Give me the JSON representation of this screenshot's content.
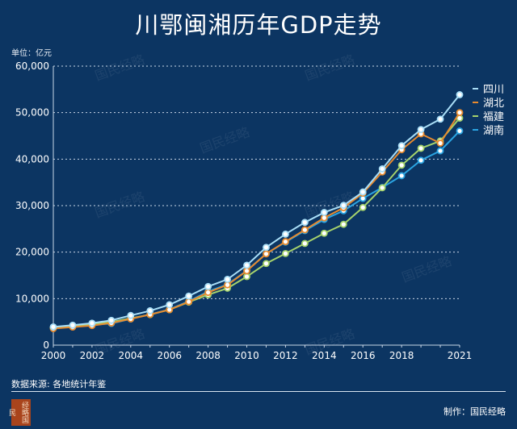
{
  "title": "川鄂闽湘历年GDP走势",
  "unit": "单位：亿元",
  "source": "数据来源: 各地统计年鉴",
  "credit": "制作：国民经略",
  "watermark": "国民经略",
  "logo_text": "国民经略",
  "background": "#0c3562",
  "chart_data": {
    "type": "line",
    "title": "川鄂闽湘历年GDP走势",
    "ylabel": "单位：亿元",
    "xlabel": "",
    "x": [
      2000,
      2001,
      2002,
      2003,
      2004,
      2005,
      2006,
      2007,
      2008,
      2009,
      2010,
      2011,
      2012,
      2013,
      2014,
      2015,
      2016,
      2017,
      2018,
      2019,
      2020,
      2021
    ],
    "xticks": [
      "2000",
      "2002",
      "2004",
      "2006",
      "2008",
      "2010",
      "2012",
      "2014",
      "2016",
      "2018",
      "2021"
    ],
    "ylim": [
      0,
      60000
    ],
    "yticks": [
      "0",
      "10,000",
      "20,000",
      "30,000",
      "40,000",
      "50,000",
      "60,000"
    ],
    "grid": "horizontal dotted",
    "legend": "right",
    "series": [
      {
        "name": "四川",
        "color": "#a9def7",
        "values": [
          3928,
          4293,
          4725,
          5333,
          6380,
          7385,
          8690,
          10562,
          12601,
          14151,
          17185,
          21027,
          23873,
          26392,
          28537,
          30053,
          32935,
          37905,
          42902,
          46364,
          48599,
          53851
        ]
      },
      {
        "name": "湖北",
        "color": "#e88a2e",
        "values": [
          3545,
          3881,
          4213,
          4757,
          5633,
          6590,
          7617,
          9333,
          11329,
          12961,
          15968,
          19632,
          22250,
          24792,
          27379,
          29550,
          32665,
          37235,
          42022,
          45429,
          43443,
          50013
        ]
      },
      {
        "name": "福建",
        "color": "#a6d36c",
        "values": [
          3765,
          4073,
          4468,
          4984,
          5763,
          6555,
          7614,
          9249,
          10823,
          12237,
          14737,
          17560,
          19702,
          21868,
          24056,
          25980,
          29609,
          33842,
          38688,
          42327,
          43904,
          48810
        ]
      },
      {
        "name": "湖南",
        "color": "#2ba4e2",
        "values": [
          3692,
          3983,
          4341,
          4660,
          5642,
          6596,
          7689,
          9440,
          11555,
          13060,
          16038,
          19670,
          22154,
          24622,
          27037,
          28902,
          31551,
          33903,
          36426,
          39752,
          41781,
          46063
        ]
      }
    ]
  }
}
